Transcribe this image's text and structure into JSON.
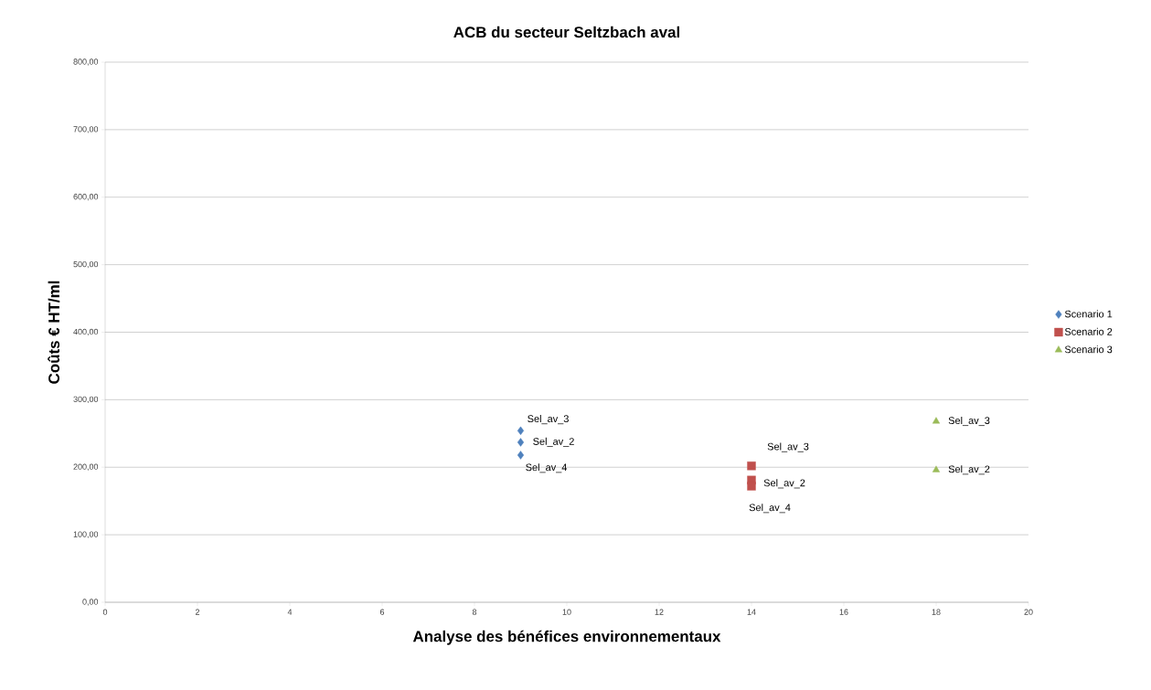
{
  "chart_data": {
    "type": "scatter",
    "title": "ACB du secteur Seltzbach aval",
    "xlabel": "Analyse des bénéfices environnementaux",
    "ylabel": "Coûts € HT/ml",
    "xlim": [
      0,
      20
    ],
    "ylim": [
      0,
      800
    ],
    "xticks": [
      0,
      2,
      4,
      6,
      8,
      10,
      12,
      14,
      16,
      18,
      20
    ],
    "yticks": [
      {
        "value": 0,
        "label": "0,00"
      },
      {
        "value": 100,
        "label": "100,00"
      },
      {
        "value": 200,
        "label": "200,00"
      },
      {
        "value": 300,
        "label": "300,00"
      },
      {
        "value": 400,
        "label": "400,00"
      },
      {
        "value": 500,
        "label": "500,00"
      },
      {
        "value": 600,
        "label": "600,00"
      },
      {
        "value": 700,
        "label": "700,00"
      },
      {
        "value": 800,
        "label": "800,00"
      }
    ],
    "grid": "y",
    "legend": "right",
    "series": [
      {
        "name": "Scenario 1",
        "color": "#4f81bd",
        "marker": "diamond",
        "x": [
          9,
          9,
          9
        ],
        "values": [
          254,
          237,
          218
        ]
      },
      {
        "name": "Scenario 2",
        "color": "#c0504d",
        "marker": "square",
        "x": [
          14,
          14,
          14
        ],
        "values": [
          202,
          181,
          172
        ]
      },
      {
        "name": "Scenario 3",
        "color": "#9bbb59",
        "marker": "triangle",
        "x": [
          18,
          18
        ],
        "values": [
          268,
          196
        ]
      }
    ],
    "annotations": [
      {
        "text": "Sel_av_3",
        "x": 9,
        "y": 254
      },
      {
        "text": "Sel_av_2",
        "x": 9,
        "y": 237
      },
      {
        "text": "Sel_av_4",
        "x": 9,
        "y": 218
      },
      {
        "text": "Sel_av_3",
        "x": 14,
        "y": 202
      },
      {
        "text": "Sel_av_2",
        "x": 14,
        "y": 181
      },
      {
        "text": "Sel_av_4",
        "x": 14,
        "y": 172
      },
      {
        "text": "Sel_av_3",
        "x": 18,
        "y": 268
      },
      {
        "text": "Sel_av_2",
        "x": 18,
        "y": 196
      }
    ]
  }
}
